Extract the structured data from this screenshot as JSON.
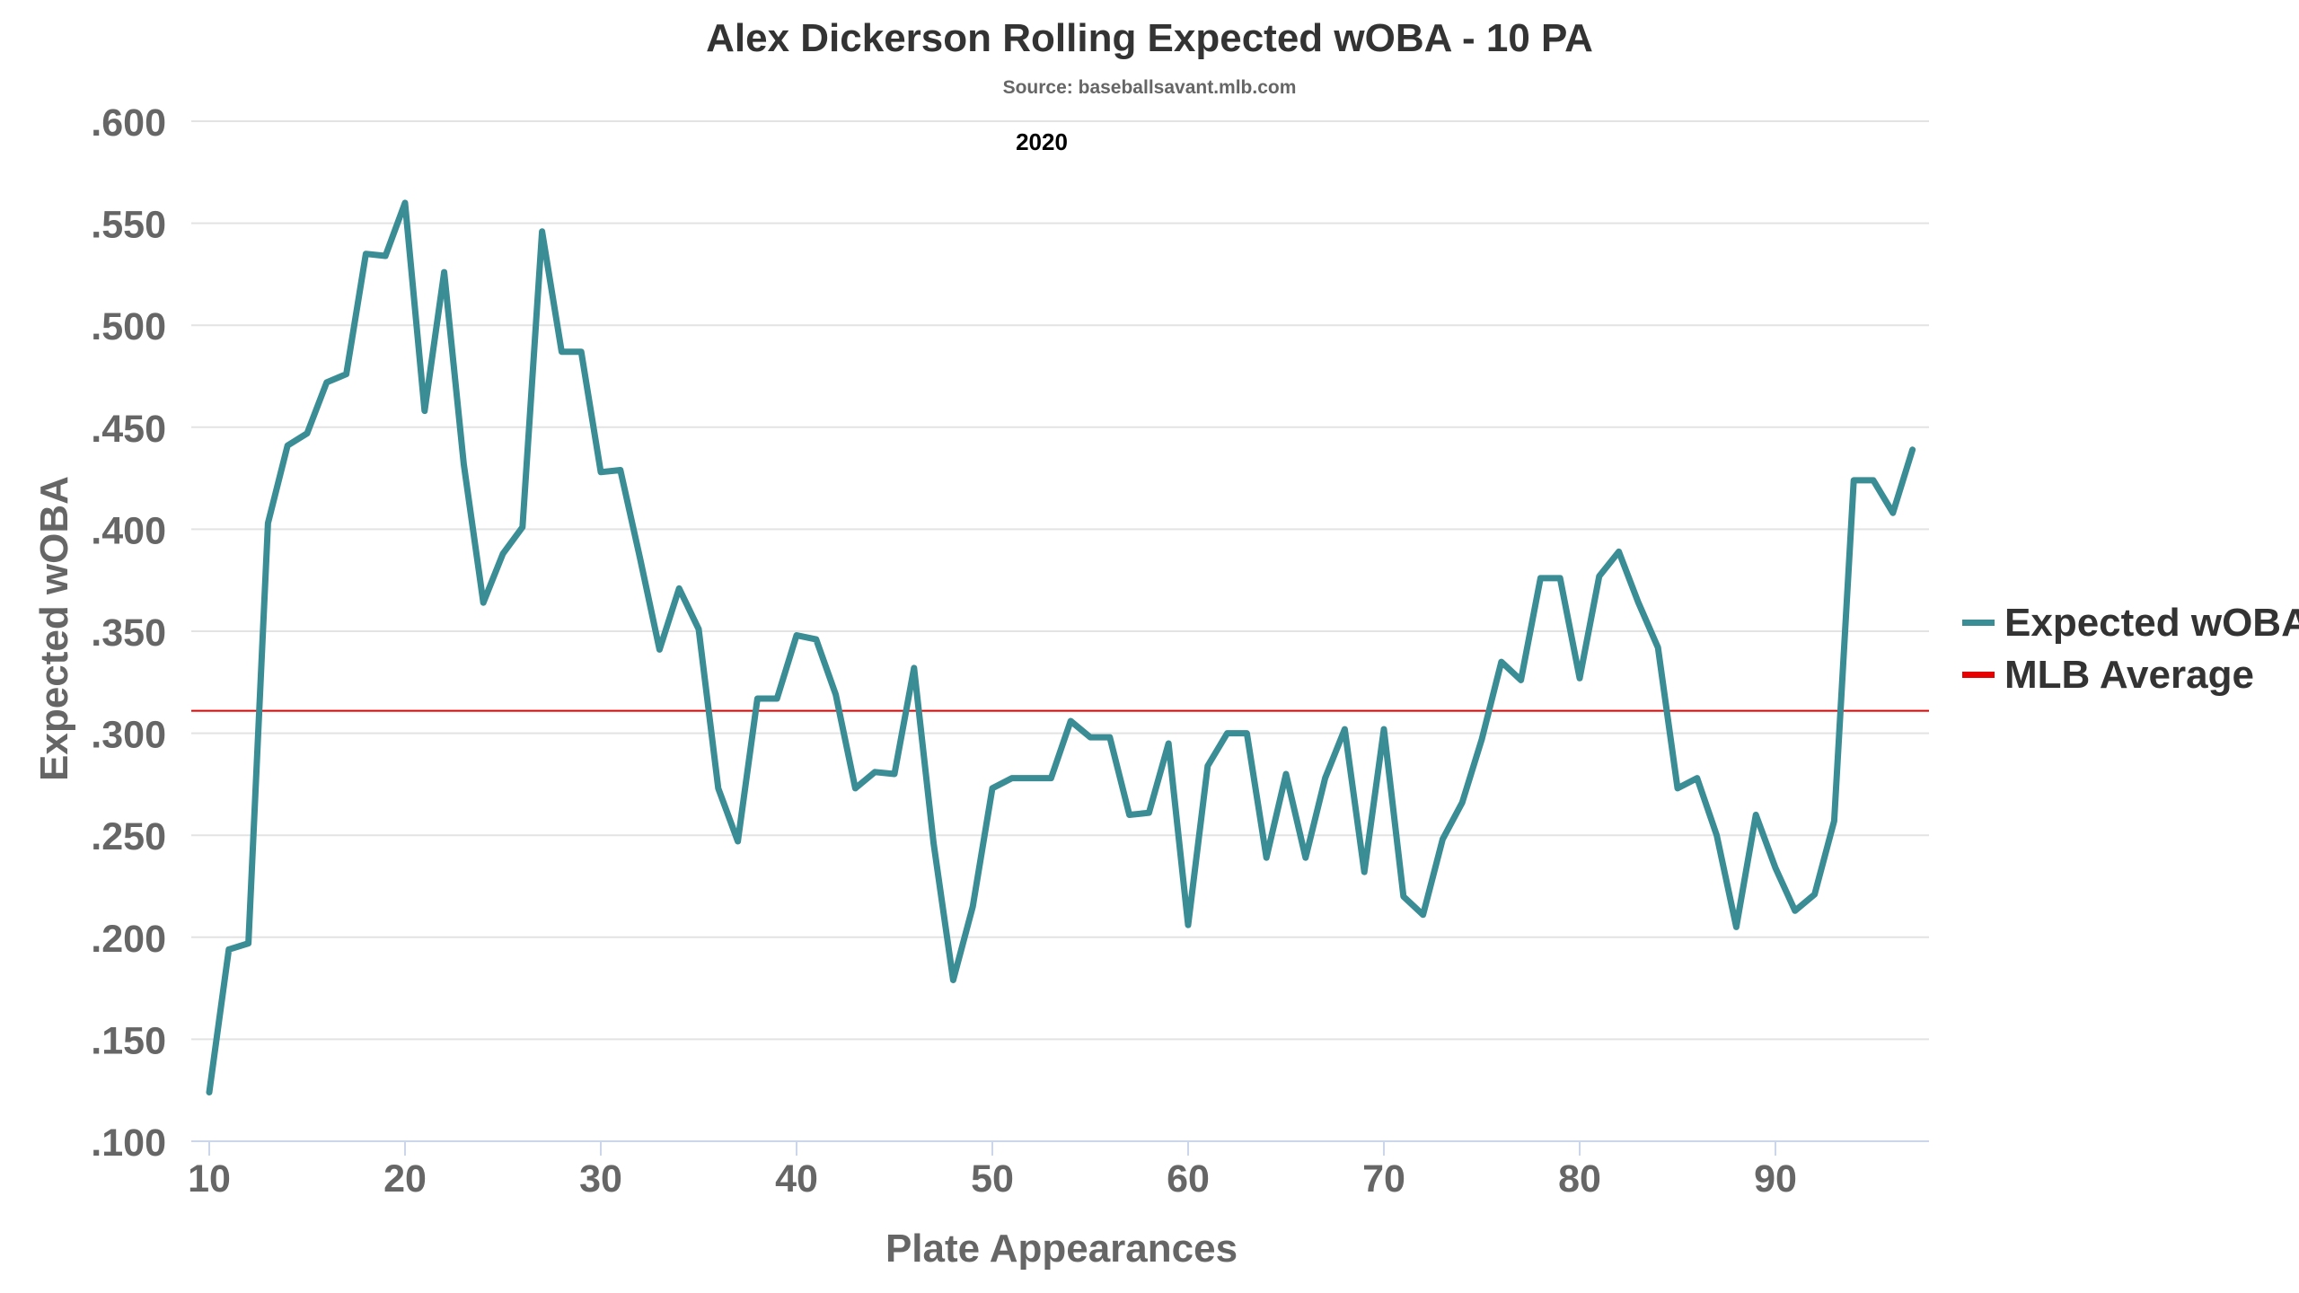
{
  "chart_data": {
    "type": "line",
    "title": "Alex Dickerson Rolling Expected wOBA - 10 PA",
    "subtitle": "Source: baseballsavant.mlb.com",
    "season_label": "2020",
    "xlabel": "Plate Appearances",
    "ylabel": "Expected wOBA",
    "xlim": [
      10,
      97
    ],
    "ylim": [
      0.1,
      0.6
    ],
    "x_ticks": [
      10,
      20,
      30,
      40,
      50,
      60,
      70,
      80,
      90
    ],
    "x_tick_labels": [
      "10",
      "20",
      "30",
      "40",
      "50",
      "60",
      "70",
      "80",
      "90"
    ],
    "y_ticks": [
      0.1,
      0.15,
      0.2,
      0.25,
      0.3,
      0.35,
      0.4,
      0.45,
      0.5,
      0.55,
      0.6
    ],
    "y_tick_labels": [
      ".100",
      ".150",
      ".200",
      ".250",
      ".300",
      ".350",
      ".400",
      ".450",
      ".500",
      ".550",
      ".600"
    ],
    "grid": true,
    "legend_position": "right",
    "series": [
      {
        "name": "Expected wOBA",
        "color": "#3a8d94",
        "x": [
          10,
          11,
          12,
          13,
          14,
          15,
          16,
          17,
          18,
          19,
          20,
          21,
          22,
          23,
          24,
          25,
          26,
          27,
          28,
          29,
          30,
          31,
          32,
          33,
          34,
          35,
          36,
          37,
          38,
          39,
          40,
          41,
          42,
          43,
          44,
          45,
          46,
          47,
          48,
          49,
          50,
          51,
          52,
          53,
          54,
          55,
          56,
          57,
          58,
          59,
          60,
          61,
          62,
          63,
          64,
          65,
          66,
          67,
          68,
          69,
          70,
          71,
          72,
          73,
          74,
          75,
          76,
          77,
          78,
          79,
          80,
          81,
          82,
          83,
          84,
          85,
          86,
          87,
          88,
          89,
          90,
          91,
          92,
          93,
          94,
          95,
          96,
          97
        ],
        "values": [
          0.124,
          0.194,
          0.197,
          0.403,
          0.441,
          0.447,
          0.472,
          0.476,
          0.535,
          0.534,
          0.56,
          0.458,
          0.526,
          0.432,
          0.364,
          0.388,
          0.401,
          0.546,
          0.487,
          0.487,
          0.428,
          0.429,
          0.386,
          0.341,
          0.371,
          0.351,
          0.273,
          0.247,
          0.317,
          0.317,
          0.348,
          0.346,
          0.319,
          0.273,
          0.281,
          0.28,
          0.332,
          0.246,
          0.179,
          0.215,
          0.273,
          0.278,
          0.278,
          0.278,
          0.306,
          0.298,
          0.298,
          0.26,
          0.261,
          0.295,
          0.206,
          0.284,
          0.3,
          0.3,
          0.239,
          0.28,
          0.239,
          0.278,
          0.302,
          0.232,
          0.302,
          0.22,
          0.211,
          0.248,
          0.266,
          0.297,
          0.335,
          0.326,
          0.376,
          0.376,
          0.327,
          0.377,
          0.389,
          0.364,
          0.342,
          0.273,
          0.278,
          0.25,
          0.205,
          0.26,
          0.234,
          0.213,
          0.221,
          0.257,
          0.424,
          0.424,
          0.408,
          0.439
        ]
      },
      {
        "name": "MLB Average",
        "color": "#e60000",
        "constant": 0.311
      }
    ]
  },
  "colors": {
    "grid": "#e3e3e3",
    "axis": "#ccd6eb",
    "tick_text": "#666666",
    "title_text": "#333333"
  }
}
